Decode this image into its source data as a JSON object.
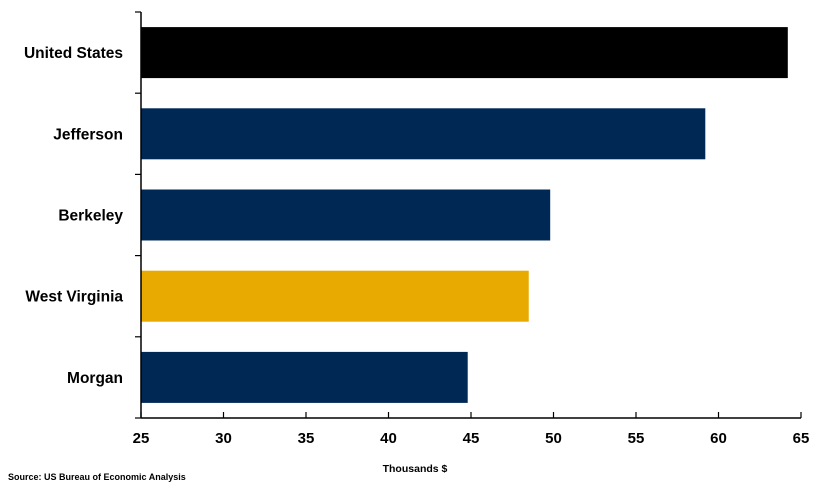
{
  "chart_data": {
    "type": "bar",
    "orientation": "horizontal",
    "categories": [
      "United States",
      "Jefferson",
      "Berkeley",
      "West Virginia",
      "Morgan"
    ],
    "values": [
      64.2,
      59.2,
      49.8,
      48.5,
      44.8
    ],
    "colors": [
      "#000000",
      "#002855",
      "#002855",
      "#E8AA00",
      "#002855"
    ],
    "xlim": [
      25,
      65
    ],
    "xticks": [
      25,
      30,
      35,
      40,
      45,
      50,
      55,
      60,
      65
    ],
    "xlabel": "Thousands $",
    "ylabel": "",
    "title": "",
    "grid": false,
    "legend": "none"
  },
  "source_note": "Source: US Bureau of Economic Analysis"
}
